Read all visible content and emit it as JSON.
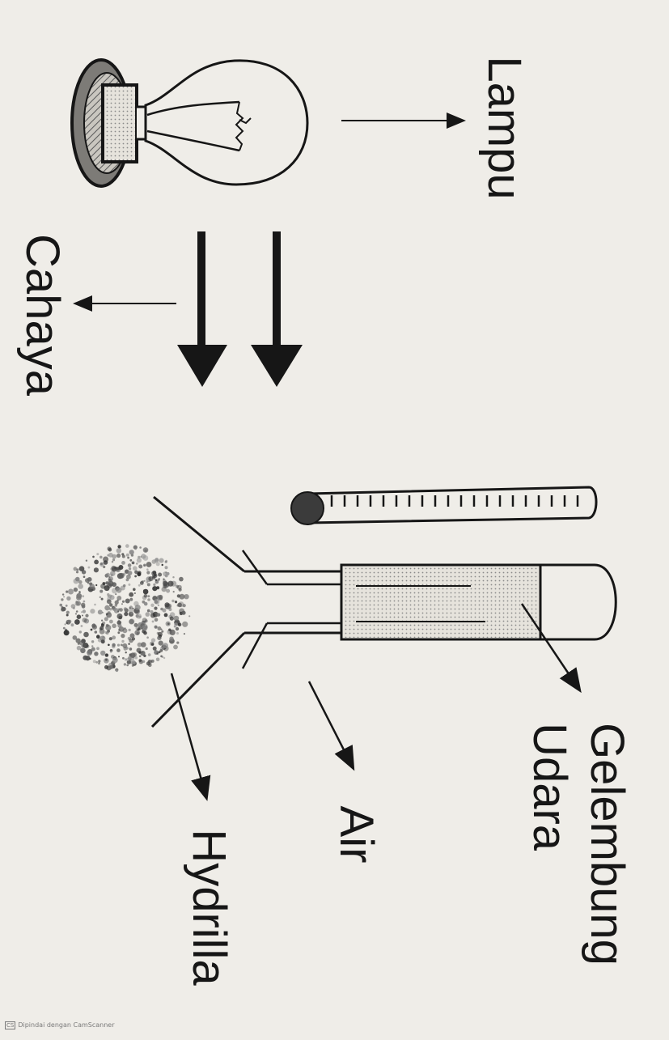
{
  "labels": {
    "lampu": "Lampu",
    "cahaya": "Cahaya",
    "gelembung_line1": "Gelembung",
    "gelembung_line2": "Udara",
    "air": "Air",
    "hydrilla": "Hydrilla"
  },
  "watermark": {
    "badge": "CS",
    "text": "Dipindai dengan CamScanner"
  },
  "colors": {
    "ink": "#161616",
    "paper": "#efede8"
  }
}
